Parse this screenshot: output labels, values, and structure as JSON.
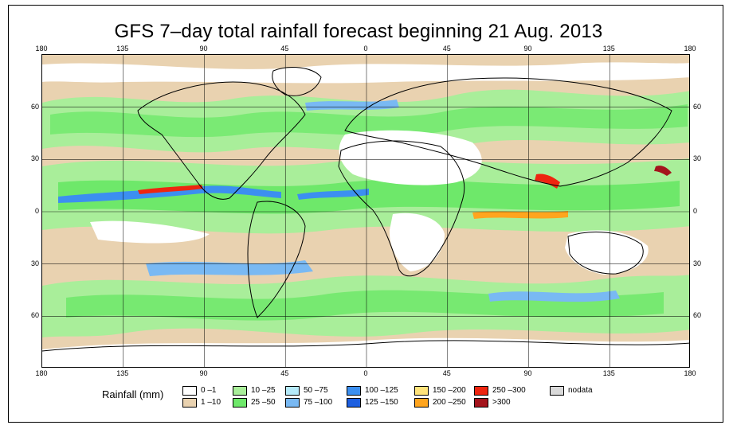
{
  "title": "GFS 7–day total rainfall forecast beginning 21 Aug. 2013",
  "axes": {
    "lon_ticks": [
      {
        "label": "180",
        "lon": -180
      },
      {
        "label": "135",
        "lon": -135
      },
      {
        "label": "90",
        "lon": -90
      },
      {
        "label": "45",
        "lon": -45
      },
      {
        "label": "0",
        "lon": 0
      },
      {
        "label": "45",
        "lon": 45
      },
      {
        "label": "90",
        "lon": 90
      },
      {
        "label": "135",
        "lon": 135
      },
      {
        "label": "180",
        "lon": 180
      }
    ],
    "lat_ticks": [
      {
        "label": "60",
        "lat": 60
      },
      {
        "label": "30",
        "lat": 30
      },
      {
        "label": "0",
        "lat": 0
      },
      {
        "label": "30",
        "lat": -30
      },
      {
        "label": "60",
        "lat": -60
      }
    ],
    "lon_range": [
      -180,
      180
    ],
    "lat_range": [
      -90,
      90
    ]
  },
  "legend": {
    "title": "Rainfall (mm)",
    "items": [
      {
        "label": "0 –1",
        "color": "#ffffff"
      },
      {
        "label": "1 –10",
        "color": "#e9d2b0"
      },
      {
        "label": "10 –25",
        "color": "#a9ee9a"
      },
      {
        "label": "25 –50",
        "color": "#6ee86a"
      },
      {
        "label": "50 –75",
        "color": "#b5eafa"
      },
      {
        "label": "75 –100",
        "color": "#79b9f3"
      },
      {
        "label": "100 –125",
        "color": "#3c8ff0"
      },
      {
        "label": "125 –150",
        "color": "#1d5fe0"
      },
      {
        "label": "150 –200",
        "color": "#ffe37a"
      },
      {
        "label": "200 –250",
        "color": "#ffa51e"
      },
      {
        "label": "250 –300",
        "color": "#ee2510"
      },
      {
        "label": ">300",
        "color": "#a4141c"
      },
      {
        "label": "nodata",
        "color": "#d9d9d9"
      }
    ]
  },
  "colors": {
    "land_outline": "#000000",
    "grid": "#000000",
    "background": "#ffffff"
  }
}
